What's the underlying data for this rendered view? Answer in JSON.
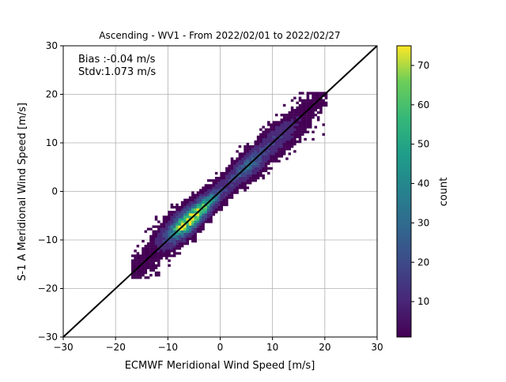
{
  "chart_data": {
    "type": "heatmap",
    "title": "Ascending - WV1 - From 2022/02/01 to 2022/02/27",
    "xlabel": "ECMWF Meridional Wind Speed [m/s]",
    "ylabel": "S-1 A Meridional Wind Speed [m/s]",
    "xlim": [
      -30,
      30
    ],
    "ylim": [
      -30,
      30
    ],
    "xticks": [
      -30,
      -20,
      -10,
      0,
      10,
      20,
      30
    ],
    "yticks": [
      -30,
      -20,
      -10,
      0,
      10,
      20,
      30
    ],
    "grid": true,
    "annotations": [
      "Bias :-0.04 m/s",
      "Stdv:1.073 m/s"
    ],
    "identity_line": {
      "x": [
        -30,
        30
      ],
      "y": [
        -30,
        30
      ]
    },
    "colorbar": {
      "label": "count",
      "colormap": "viridis",
      "range": [
        1,
        75
      ],
      "ticks": [
        10,
        20,
        30,
        40,
        50,
        60,
        70
      ]
    },
    "density_clusters": [
      {
        "x": -7,
        "y": -6.5,
        "peak_count": 75
      },
      {
        "x": -3,
        "y": -3,
        "peak_count": 40
      },
      {
        "x": 5,
        "y": 5,
        "peak_count": 30
      },
      {
        "x": 11,
        "y": 11,
        "peak_count": 12
      }
    ],
    "data_extent": {
      "x": [
        -17,
        20
      ],
      "y": [
        -18,
        20
      ]
    }
  }
}
